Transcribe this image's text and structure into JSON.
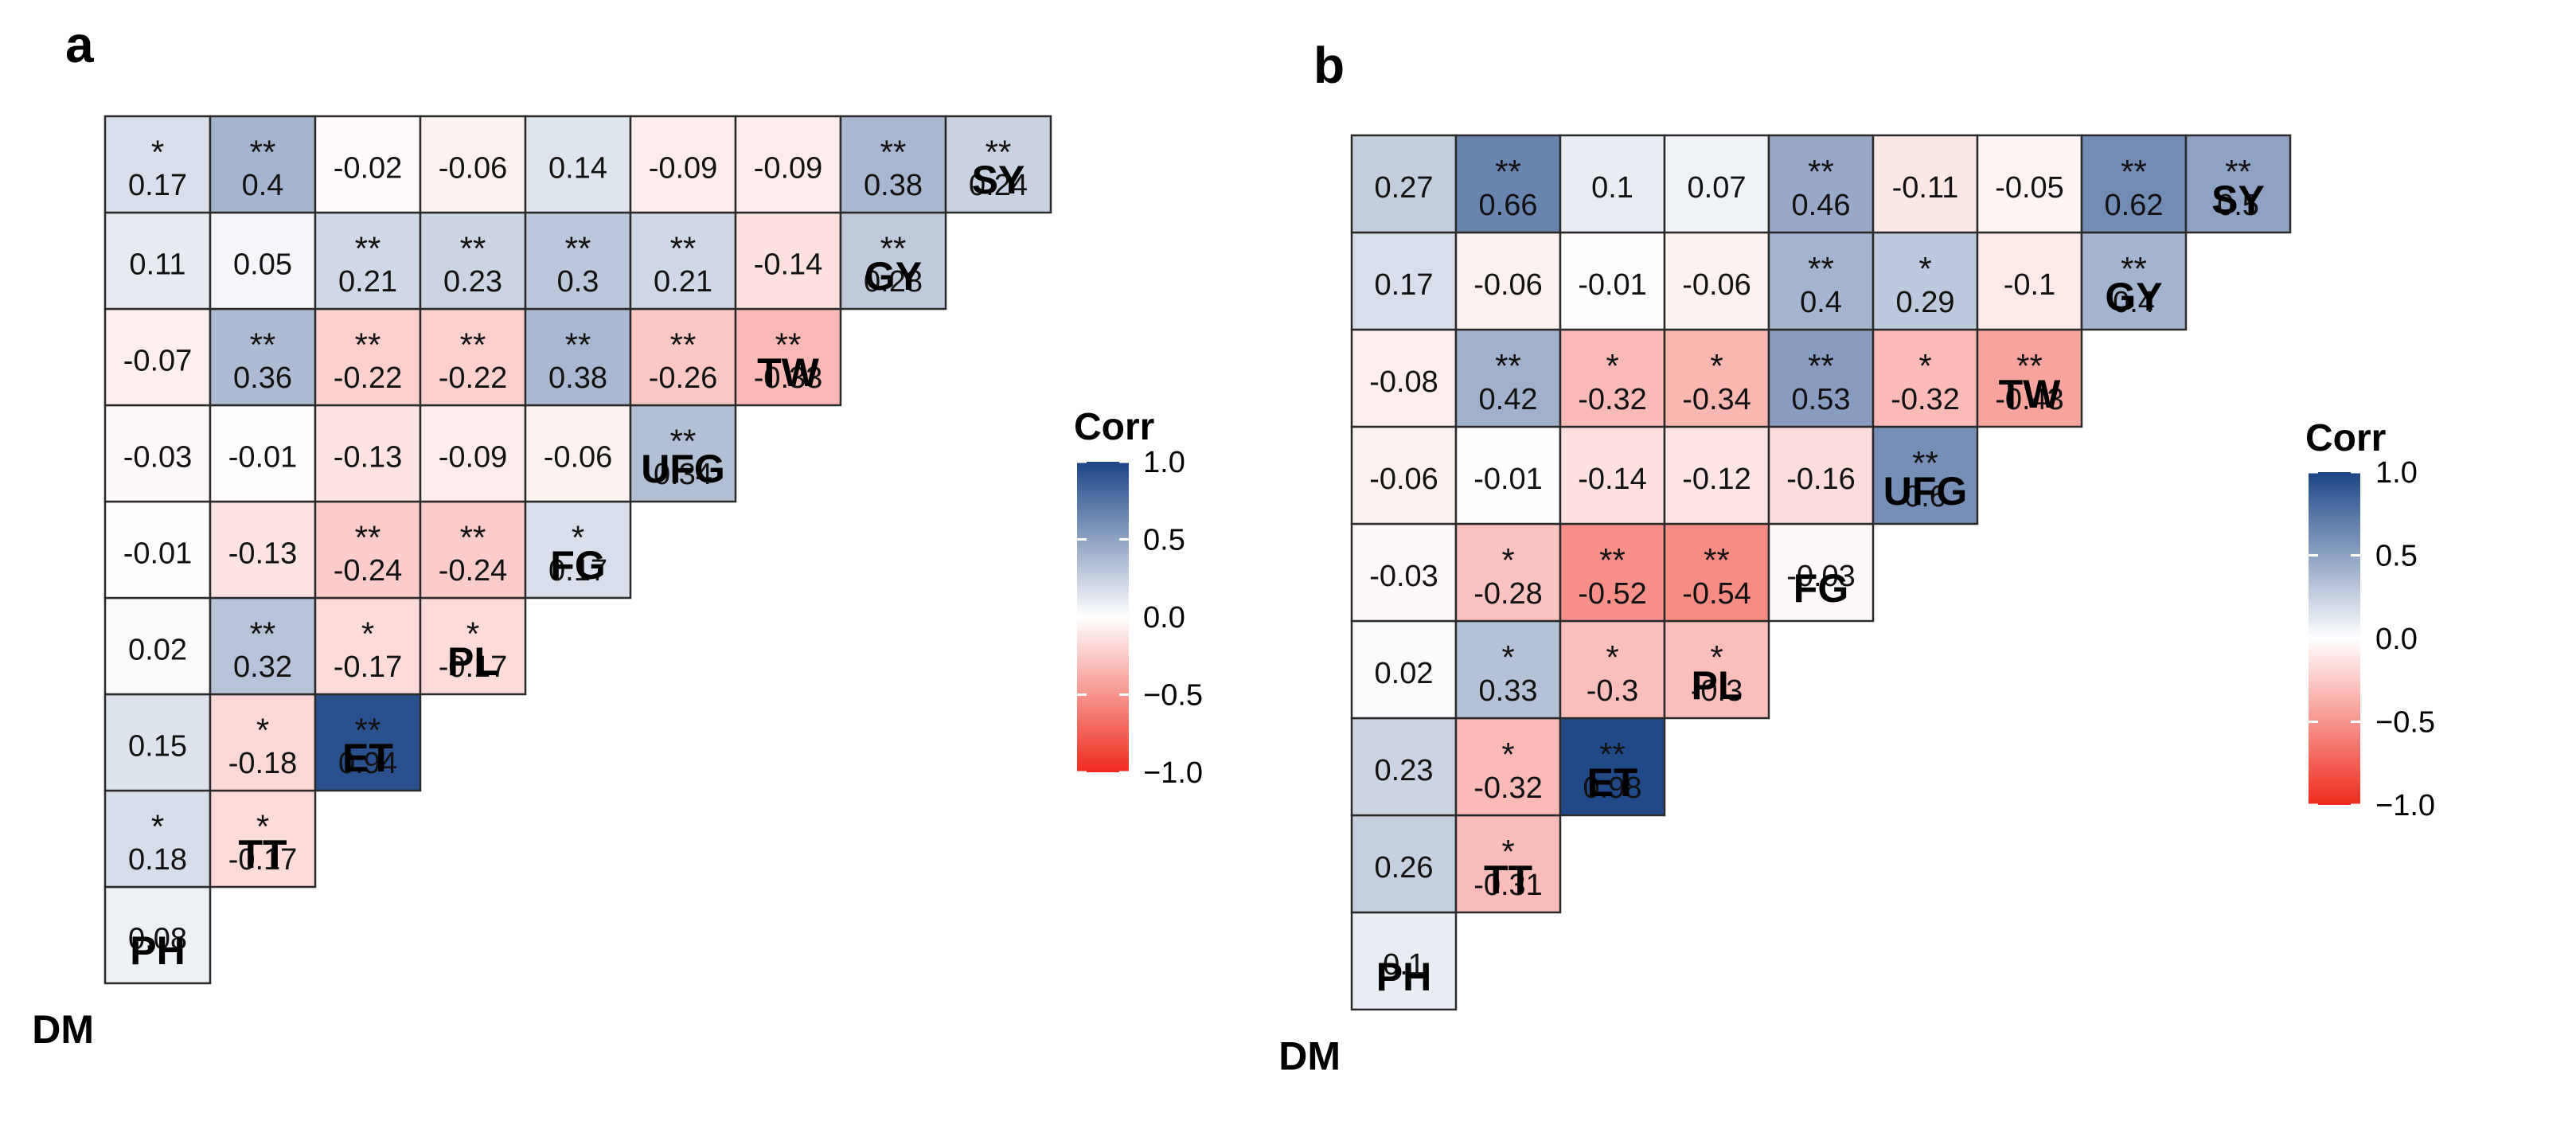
{
  "chart_data": [
    {
      "type": "heatmap",
      "panel_label": "a",
      "row_labels": [
        "DM",
        "PH",
        "TT",
        "ET",
        "PL",
        "FG",
        "UFG",
        "TW",
        "GY",
        "SY"
      ],
      "col_labels": [
        "DM",
        "PH",
        "TT",
        "ET",
        "PL",
        "FG",
        "UFG",
        "TW",
        "GY",
        "SY"
      ],
      "cells": [
        {
          "r": "PH",
          "c": "DM",
          "value": 0.08,
          "sig": ""
        },
        {
          "r": "TT",
          "c": "DM",
          "value": 0.18,
          "sig": "*"
        },
        {
          "r": "TT",
          "c": "PH",
          "value": -0.17,
          "sig": "*"
        },
        {
          "r": "ET",
          "c": "DM",
          "value": 0.15,
          "sig": ""
        },
        {
          "r": "ET",
          "c": "PH",
          "value": -0.18,
          "sig": "*"
        },
        {
          "r": "ET",
          "c": "TT",
          "value": 0.94,
          "sig": "**"
        },
        {
          "r": "PL",
          "c": "DM",
          "value": 0.02,
          "sig": ""
        },
        {
          "r": "PL",
          "c": "PH",
          "value": 0.32,
          "sig": "**"
        },
        {
          "r": "PL",
          "c": "TT",
          "value": -0.17,
          "sig": "*"
        },
        {
          "r": "PL",
          "c": "ET",
          "value": -0.17,
          "sig": "*"
        },
        {
          "r": "FG",
          "c": "DM",
          "value": -0.01,
          "sig": ""
        },
        {
          "r": "FG",
          "c": "PH",
          "value": -0.13,
          "sig": ""
        },
        {
          "r": "FG",
          "c": "TT",
          "value": -0.24,
          "sig": "**"
        },
        {
          "r": "FG",
          "c": "ET",
          "value": -0.24,
          "sig": "**"
        },
        {
          "r": "FG",
          "c": "PL",
          "value": 0.17,
          "sig": "*"
        },
        {
          "r": "UFG",
          "c": "DM",
          "value": -0.03,
          "sig": ""
        },
        {
          "r": "UFG",
          "c": "PH",
          "value": -0.01,
          "sig": ""
        },
        {
          "r": "UFG",
          "c": "TT",
          "value": -0.13,
          "sig": ""
        },
        {
          "r": "UFG",
          "c": "ET",
          "value": -0.09,
          "sig": ""
        },
        {
          "r": "UFG",
          "c": "PL",
          "value": -0.06,
          "sig": ""
        },
        {
          "r": "UFG",
          "c": "FG",
          "value": 0.34,
          "sig": "**"
        },
        {
          "r": "TW",
          "c": "DM",
          "value": -0.07,
          "sig": ""
        },
        {
          "r": "TW",
          "c": "PH",
          "value": 0.36,
          "sig": "**"
        },
        {
          "r": "TW",
          "c": "TT",
          "value": -0.22,
          "sig": "**"
        },
        {
          "r": "TW",
          "c": "ET",
          "value": -0.22,
          "sig": "**"
        },
        {
          "r": "TW",
          "c": "PL",
          "value": 0.38,
          "sig": "**"
        },
        {
          "r": "TW",
          "c": "FG",
          "value": -0.26,
          "sig": "**"
        },
        {
          "r": "TW",
          "c": "UFG",
          "value": -0.33,
          "sig": "**"
        },
        {
          "r": "GY",
          "c": "DM",
          "value": 0.11,
          "sig": ""
        },
        {
          "r": "GY",
          "c": "PH",
          "value": 0.05,
          "sig": ""
        },
        {
          "r": "GY",
          "c": "TT",
          "value": 0.21,
          "sig": "**"
        },
        {
          "r": "GY",
          "c": "ET",
          "value": 0.23,
          "sig": "**"
        },
        {
          "r": "GY",
          "c": "PL",
          "value": 0.3,
          "sig": "**"
        },
        {
          "r": "GY",
          "c": "FG",
          "value": 0.21,
          "sig": "**"
        },
        {
          "r": "GY",
          "c": "UFG",
          "value": -0.14,
          "sig": ""
        },
        {
          "r": "GY",
          "c": "TW",
          "value": 0.28,
          "sig": "**"
        },
        {
          "r": "SY",
          "c": "DM",
          "value": 0.17,
          "sig": "*"
        },
        {
          "r": "SY",
          "c": "PH",
          "value": 0.4,
          "sig": "**"
        },
        {
          "r": "SY",
          "c": "TT",
          "value": -0.02,
          "sig": ""
        },
        {
          "r": "SY",
          "c": "ET",
          "value": -0.06,
          "sig": ""
        },
        {
          "r": "SY",
          "c": "PL",
          "value": 0.14,
          "sig": ""
        },
        {
          "r": "SY",
          "c": "FG",
          "value": -0.09,
          "sig": ""
        },
        {
          "r": "SY",
          "c": "UFG",
          "value": -0.09,
          "sig": ""
        },
        {
          "r": "SY",
          "c": "TW",
          "value": 0.38,
          "sig": "**"
        },
        {
          "r": "SY",
          "c": "GY",
          "value": 0.24,
          "sig": "**"
        }
      ],
      "legend": {
        "title": "Corr",
        "ticks": [
          "1.0",
          "0.5",
          "0.0",
          "−0.5",
          "−1.0"
        ],
        "range": [
          -1.0,
          1.0
        ]
      },
      "colors": {
        "neg": "#ee2a1c",
        "mid": "#ffffff",
        "pos": "#1c4586"
      }
    },
    {
      "type": "heatmap",
      "panel_label": "b",
      "row_labels": [
        "DM",
        "PH",
        "TT",
        "ET",
        "PL",
        "FG",
        "UFG",
        "TW",
        "GY",
        "SY"
      ],
      "col_labels": [
        "DM",
        "PH",
        "TT",
        "ET",
        "PL",
        "FG",
        "UFG",
        "TW",
        "GY",
        "SY"
      ],
      "cells": [
        {
          "r": "PH",
          "c": "DM",
          "value": 0.1,
          "sig": ""
        },
        {
          "r": "TT",
          "c": "DM",
          "value": 0.26,
          "sig": ""
        },
        {
          "r": "TT",
          "c": "PH",
          "value": -0.31,
          "sig": "*"
        },
        {
          "r": "ET",
          "c": "DM",
          "value": 0.23,
          "sig": ""
        },
        {
          "r": "ET",
          "c": "PH",
          "value": -0.32,
          "sig": "*"
        },
        {
          "r": "ET",
          "c": "TT",
          "value": 0.98,
          "sig": "**"
        },
        {
          "r": "PL",
          "c": "DM",
          "value": 0.02,
          "sig": ""
        },
        {
          "r": "PL",
          "c": "PH",
          "value": 0.33,
          "sig": "*"
        },
        {
          "r": "PL",
          "c": "TT",
          "value": -0.3,
          "sig": "*"
        },
        {
          "r": "PL",
          "c": "ET",
          "value": -0.3,
          "sig": "*"
        },
        {
          "r": "FG",
          "c": "DM",
          "value": -0.03,
          "sig": ""
        },
        {
          "r": "FG",
          "c": "PH",
          "value": -0.28,
          "sig": "*"
        },
        {
          "r": "FG",
          "c": "TT",
          "value": -0.52,
          "sig": "**"
        },
        {
          "r": "FG",
          "c": "ET",
          "value": -0.54,
          "sig": "**"
        },
        {
          "r": "FG",
          "c": "PL",
          "value": -0.03,
          "sig": ""
        },
        {
          "r": "UFG",
          "c": "DM",
          "value": -0.06,
          "sig": ""
        },
        {
          "r": "UFG",
          "c": "PH",
          "value": -0.01,
          "sig": ""
        },
        {
          "r": "UFG",
          "c": "TT",
          "value": -0.14,
          "sig": ""
        },
        {
          "r": "UFG",
          "c": "ET",
          "value": -0.12,
          "sig": ""
        },
        {
          "r": "UFG",
          "c": "PL",
          "value": -0.16,
          "sig": ""
        },
        {
          "r": "UFG",
          "c": "FG",
          "value": 0.6,
          "sig": "**"
        },
        {
          "r": "TW",
          "c": "DM",
          "value": -0.08,
          "sig": ""
        },
        {
          "r": "TW",
          "c": "PH",
          "value": 0.42,
          "sig": "**"
        },
        {
          "r": "TW",
          "c": "TT",
          "value": -0.32,
          "sig": "*"
        },
        {
          "r": "TW",
          "c": "ET",
          "value": -0.34,
          "sig": "*"
        },
        {
          "r": "TW",
          "c": "PL",
          "value": 0.53,
          "sig": "**"
        },
        {
          "r": "TW",
          "c": "FG",
          "value": -0.32,
          "sig": "*"
        },
        {
          "r": "TW",
          "c": "UFG",
          "value": -0.43,
          "sig": "**"
        },
        {
          "r": "GY",
          "c": "DM",
          "value": 0.17,
          "sig": ""
        },
        {
          "r": "GY",
          "c": "PH",
          "value": -0.06,
          "sig": ""
        },
        {
          "r": "GY",
          "c": "TT",
          "value": -0.01,
          "sig": ""
        },
        {
          "r": "GY",
          "c": "ET",
          "value": -0.06,
          "sig": ""
        },
        {
          "r": "GY",
          "c": "PL",
          "value": 0.4,
          "sig": "**"
        },
        {
          "r": "GY",
          "c": "FG",
          "value": 0.29,
          "sig": "*"
        },
        {
          "r": "GY",
          "c": "UFG",
          "value": -0.1,
          "sig": ""
        },
        {
          "r": "GY",
          "c": "TW",
          "value": 0.4,
          "sig": "**"
        },
        {
          "r": "SY",
          "c": "DM",
          "value": 0.27,
          "sig": ""
        },
        {
          "r": "SY",
          "c": "PH",
          "value": 0.66,
          "sig": "**"
        },
        {
          "r": "SY",
          "c": "TT",
          "value": 0.1,
          "sig": ""
        },
        {
          "r": "SY",
          "c": "ET",
          "value": 0.07,
          "sig": ""
        },
        {
          "r": "SY",
          "c": "PL",
          "value": 0.46,
          "sig": "**"
        },
        {
          "r": "SY",
          "c": "FG",
          "value": -0.11,
          "sig": ""
        },
        {
          "r": "SY",
          "c": "UFG",
          "value": -0.05,
          "sig": ""
        },
        {
          "r": "SY",
          "c": "TW",
          "value": 0.62,
          "sig": "**"
        },
        {
          "r": "SY",
          "c": "GY",
          "value": 0.5,
          "sig": "**"
        }
      ],
      "legend": {
        "title": "Corr",
        "ticks": [
          "1.0",
          "0.5",
          "0.0",
          "−0.5",
          "−1.0"
        ],
        "range": [
          -1.0,
          1.0
        ]
      },
      "colors": {
        "neg": "#ee2a1c",
        "mid": "#ffffff",
        "pos": "#1c4586"
      }
    }
  ]
}
